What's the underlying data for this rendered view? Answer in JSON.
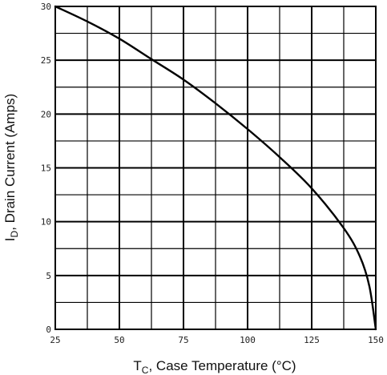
{
  "chart_data": {
    "type": "line",
    "xlabel": {
      "main": "T",
      "sub": "C",
      "rest": ", Case Temperature (°C)"
    },
    "ylabel": {
      "main": "I",
      "sub": "D",
      "rest": ", Drain Current (Amps)"
    },
    "xlim": [
      25,
      150
    ],
    "ylim": [
      0,
      30
    ],
    "x_ticks": [
      "25",
      "50",
      "75",
      "100",
      "125",
      "150"
    ],
    "y_ticks": [
      "0",
      "5",
      "10",
      "15",
      "20",
      "25",
      "30"
    ],
    "x_minor_step": 12.5,
    "y_minor_step": 2.5,
    "grid": true,
    "series": [
      {
        "x": [
          25,
          37.5,
          50,
          62.5,
          75,
          87.5,
          100,
          112.5,
          125,
          137.5,
          143.75,
          147.5,
          150
        ],
        "y": [
          30,
          28.6,
          27.0,
          25.1,
          23.2,
          21.0,
          18.6,
          16.0,
          13.1,
          9.4,
          6.8,
          4.0,
          0
        ]
      }
    ],
    "colors": {
      "grid": "#000000",
      "curve": "#000000",
      "text": "#222222"
    }
  }
}
